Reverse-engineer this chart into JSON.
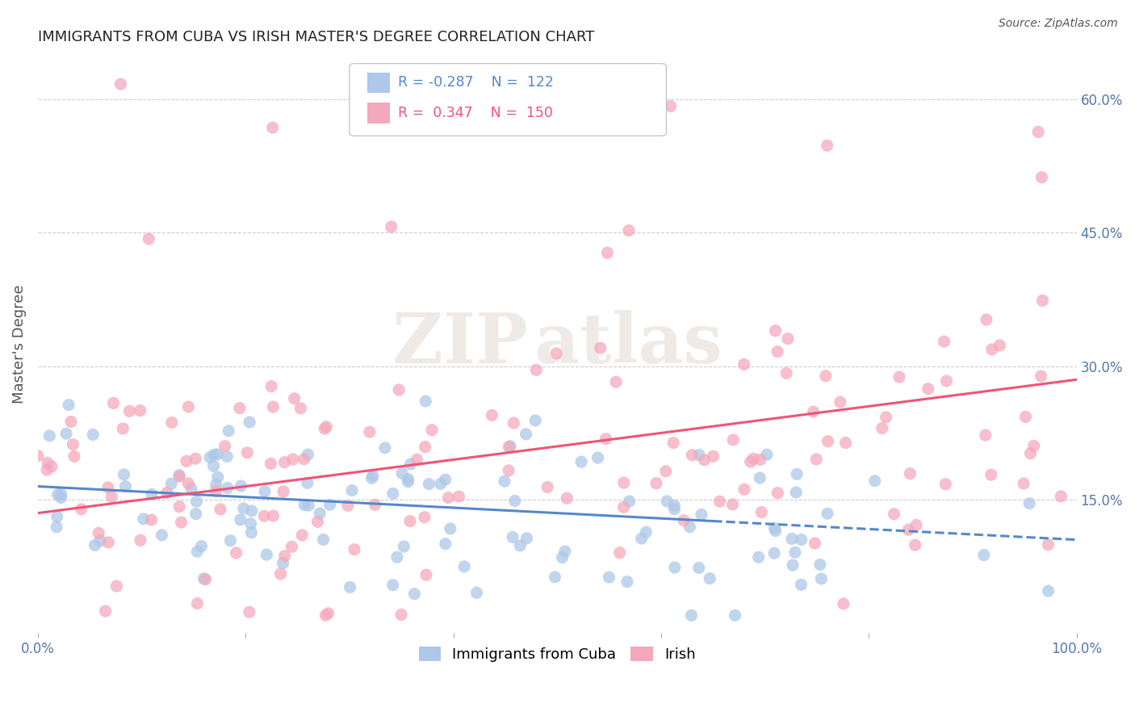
{
  "title": "IMMIGRANTS FROM CUBA VS IRISH MASTER'S DEGREE CORRELATION CHART",
  "source": "Source: ZipAtlas.com",
  "ylabel": "Master's Degree",
  "xlim": [
    0.0,
    1.0
  ],
  "ylim": [
    0.0,
    0.65
  ],
  "xtick_positions": [
    0.0,
    0.2,
    0.4,
    0.6,
    0.8,
    1.0
  ],
  "xtick_labels": [
    "0.0%",
    "",
    "",
    "",
    "",
    "100.0%"
  ],
  "ytick_labels": [
    "15.0%",
    "30.0%",
    "45.0%",
    "60.0%"
  ],
  "ytick_positions": [
    0.15,
    0.3,
    0.45,
    0.6
  ],
  "legend_line1": "R = -0.287   N =  122",
  "legend_line2": "R =  0.347   N =  150",
  "color_blue": "#adc8e8",
  "color_pink": "#f5a8bb",
  "line_blue": "#5588cc",
  "line_pink": "#ee5577",
  "background_color": "#ffffff",
  "grid_color": "#cccccc",
  "axis_label_color": "#555555",
  "tick_label_color": "#5577aa",
  "title_color": "#222222",
  "n_blue": 122,
  "n_pink": 150,
  "R_blue": -0.287,
  "R_pink": 0.347,
  "blue_line_start_y": 0.165,
  "blue_line_end_y": 0.105,
  "blue_line_solid_end_x": 0.65,
  "pink_line_start_y": 0.135,
  "pink_line_end_y": 0.285
}
